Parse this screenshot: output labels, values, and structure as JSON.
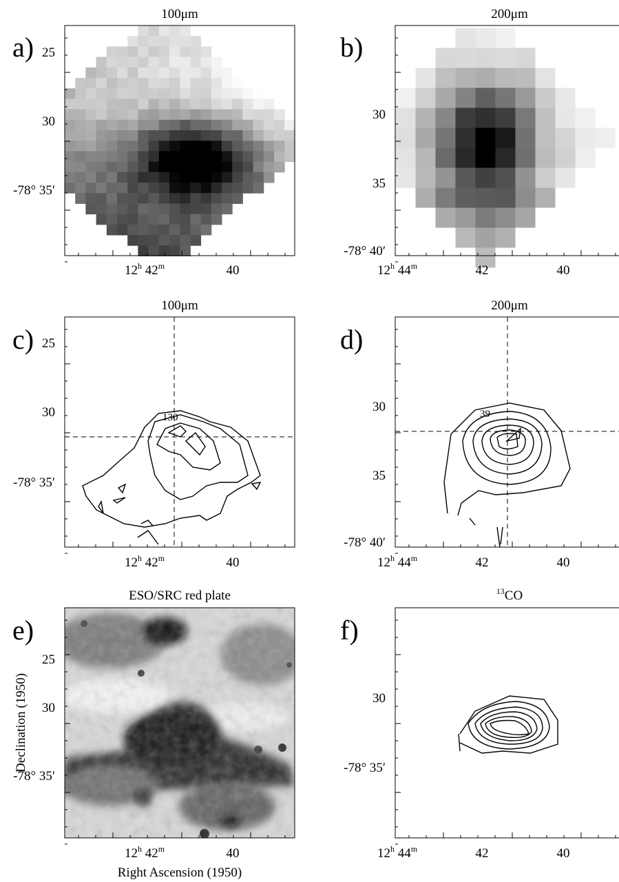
{
  "panels": [
    {
      "label": "a)",
      "title": "100μm",
      "yticks": [
        "25",
        "30",
        "-78° 35′"
      ],
      "xticks": [
        [
          "12",
          "h",
          " 42",
          "m"
        ],
        [
          "40"
        ]
      ]
    },
    {
      "label": "b)",
      "title": "200μm",
      "yticks": [
        "30",
        "35",
        "-78° 40′"
      ],
      "xticks": [
        [
          "12",
          "h",
          " 44",
          "m"
        ],
        [
          "42"
        ],
        [
          "40"
        ]
      ]
    },
    {
      "label": "c)",
      "title": "100μm",
      "yticks": [
        "25",
        "30",
        "-78° 35′"
      ],
      "xticks": [
        [
          "12",
          "h",
          " 42",
          "m"
        ],
        [
          "40"
        ]
      ],
      "contour_label": "130"
    },
    {
      "label": "d)",
      "title": "200μm",
      "yticks": [
        "30",
        "35",
        "-78° 40′"
      ],
      "xticks": [
        [
          "12",
          "h",
          " 44",
          "m"
        ],
        [
          "42"
        ],
        [
          "40"
        ]
      ],
      "contour_label": "39"
    },
    {
      "label": "e)",
      "title": "ESO/SRC red plate",
      "yticks": [
        "25",
        "30",
        "-78° 35′"
      ],
      "xticks": [
        [
          "12",
          "h",
          " 42",
          "m"
        ],
        [
          "40"
        ]
      ]
    },
    {
      "label": "f)",
      "title": [
        "13",
        "CO"
      ],
      "yticks": [
        "30",
        "-78° 35′"
      ],
      "xticks": [
        [
          "12",
          "h",
          " 44",
          "m"
        ],
        [
          "42"
        ],
        [
          "40"
        ]
      ]
    }
  ],
  "y_axis_title": "Declination (1950)",
  "x_axis_title": "Right Ascension (1950)"
}
